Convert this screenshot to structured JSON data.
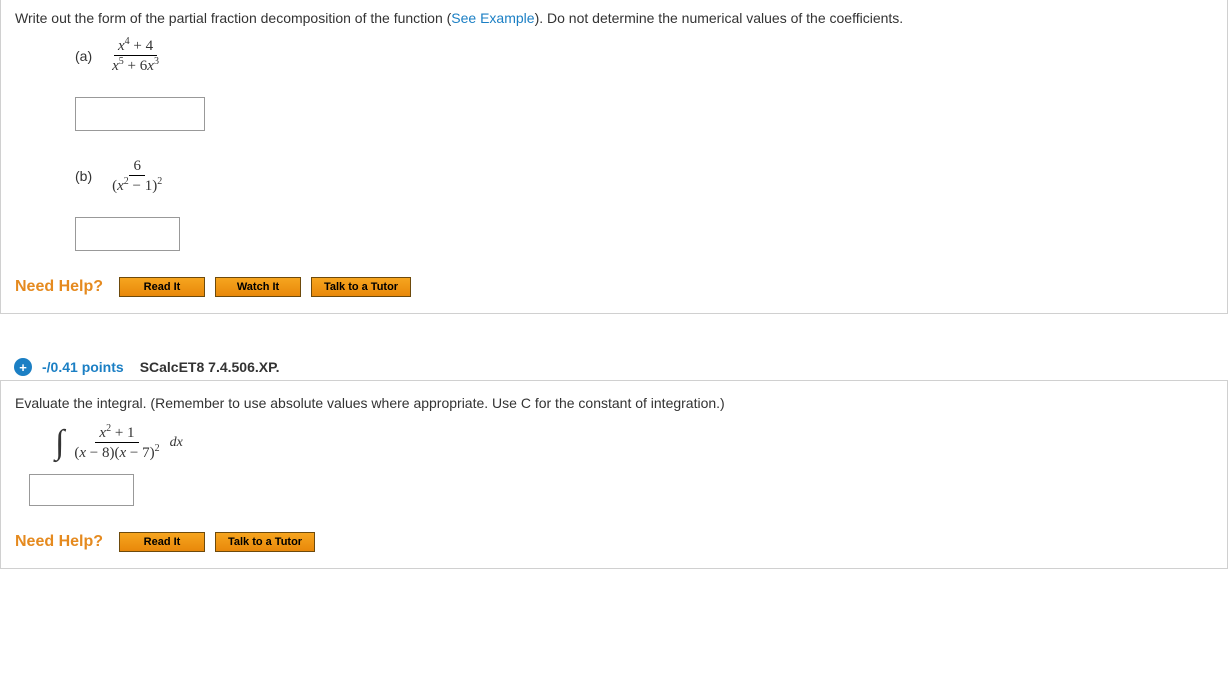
{
  "q1": {
    "instruction_pre": "Write out the form of the partial fraction decomposition of the function (",
    "see_example": "See Example",
    "instruction_post": "). Do not determine the numerical values of the coefficients.",
    "part_a": {
      "label": "(a)",
      "numerator": "x⁴ + 4",
      "denominator": "x⁵ + 6x³",
      "num_html": "<span class='emvar'>x</span><sup>4</sup> <span class='rm'>+ 4</span>",
      "den_html": "<span class='emvar'>x</span><sup>5</sup> <span class='rm'>+ 6</span><span class='emvar'>x</span><sup>3</sup>"
    },
    "part_b": {
      "label": "(b)",
      "numerator": "6",
      "denominator": "(x² − 1)²",
      "num_html": "<span class='rm'>6</span>",
      "den_html": "<span class='rm'>(</span><span class='emvar'>x</span><sup>2</sup> <span class='rm'>− 1)</span><sup>2</sup>"
    },
    "help": {
      "label": "Need Help?",
      "read": "Read It",
      "watch": "Watch It",
      "tutor": "Talk to a Tutor"
    }
  },
  "q2": {
    "points": "-/0.41 points",
    "qid": "SCalcET8 7.4.506.XP.",
    "instruction": "Evaluate the integral. (Remember to use absolute values where appropriate. Use C for the constant of integration.)",
    "integral": {
      "num_html": "<span class='emvar'>x</span><sup>2</sup> <span class='rm'>+ 1</span>",
      "den_html": "<span class='rm'>(</span><span class='emvar'>x</span> <span class='rm'>− 8)(</span><span class='emvar'>x</span> <span class='rm'>− 7)</span><sup>2</sup>",
      "dx": "dx"
    },
    "help": {
      "label": "Need Help?",
      "read": "Read It",
      "tutor": "Talk to a Tutor"
    }
  },
  "colors": {
    "link": "#1b7fc4",
    "accent": "#e58a1f",
    "button_top": "#f6a51f",
    "button_bottom": "#e8880a",
    "button_border": "#6d4a0c",
    "box_border": "#d0d0d0"
  }
}
